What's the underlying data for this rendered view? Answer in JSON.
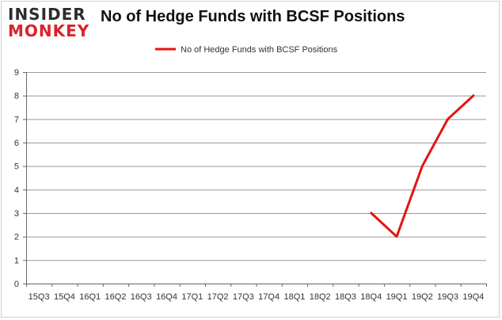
{
  "logo": {
    "line1": "INSIDER",
    "line2": "MONKEY"
  },
  "colors": {
    "series": "#e4130f",
    "grid": "#999999",
    "axis": "#666666",
    "logo_accent": "#d9232a"
  },
  "chart_data": {
    "type": "line",
    "title": "No of Hedge Funds with BCSF Positions",
    "xlabel": "",
    "ylabel": "",
    "categories": [
      "15Q3",
      "15Q4",
      "16Q1",
      "16Q2",
      "16Q3",
      "16Q4",
      "17Q1",
      "17Q2",
      "17Q3",
      "17Q4",
      "18Q1",
      "18Q2",
      "18Q3",
      "18Q4",
      "19Q1",
      "19Q2",
      "19Q3",
      "19Q4"
    ],
    "series": [
      {
        "name": "No of Hedge Funds with BCSF Positions",
        "values": [
          null,
          null,
          null,
          null,
          null,
          null,
          null,
          null,
          null,
          null,
          null,
          null,
          null,
          3,
          2,
          5,
          7,
          8
        ]
      }
    ],
    "ylim": [
      0,
      9
    ],
    "yticks": [
      0,
      1,
      2,
      3,
      4,
      5,
      6,
      7,
      8,
      9
    ],
    "grid": "horizontal",
    "legend": "top-center"
  }
}
